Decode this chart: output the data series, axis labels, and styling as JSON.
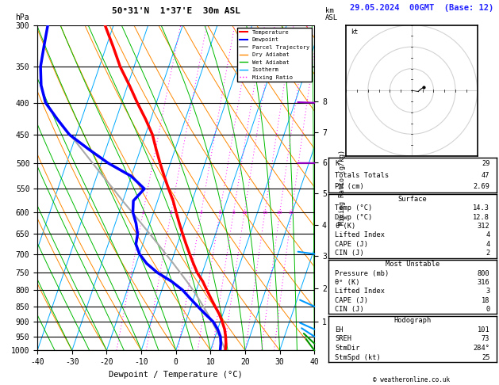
{
  "title_left": "50°31'N  1°37'E  30m ASL",
  "title_right": "29.05.2024  00GMT  (Base: 12)",
  "xlabel": "Dewpoint / Temperature (°C)",
  "pressure_ticks": [
    300,
    350,
    400,
    450,
    500,
    550,
    600,
    650,
    700,
    750,
    800,
    850,
    900,
    950,
    1000
  ],
  "mixing_ratio_lines": [
    1,
    2,
    4,
    6,
    8,
    10,
    15,
    20,
    25
  ],
  "km_ticks": [
    1,
    2,
    3,
    4,
    5,
    6,
    7,
    8
  ],
  "km_pressures": [
    898,
    795,
    705,
    628,
    560,
    499,
    446,
    398
  ],
  "temperature_profile": {
    "pressure": [
      1000,
      975,
      950,
      925,
      900,
      875,
      850,
      825,
      800,
      775,
      750,
      725,
      700,
      675,
      650,
      625,
      600,
      575,
      550,
      525,
      500,
      475,
      450,
      425,
      400,
      375,
      350,
      325,
      300
    ],
    "temp": [
      14.3,
      13.8,
      13.0,
      12.0,
      10.6,
      9.0,
      7.0,
      5.0,
      3.0,
      1.0,
      -1.5,
      -3.5,
      -5.5,
      -7.5,
      -9.5,
      -11.5,
      -13.5,
      -15.5,
      -18.0,
      -20.5,
      -23.0,
      -25.5,
      -28.0,
      -31.5,
      -35.5,
      -39.5,
      -44.0,
      -48.0,
      -52.5
    ]
  },
  "dewpoint_profile": {
    "pressure": [
      1000,
      975,
      950,
      925,
      900,
      875,
      850,
      825,
      800,
      775,
      750,
      725,
      700,
      675,
      650,
      625,
      600,
      575,
      550,
      525,
      500,
      475,
      450,
      425,
      400,
      375,
      350,
      325,
      300
    ],
    "dewp": [
      12.8,
      12.3,
      11.5,
      10.0,
      8.0,
      5.0,
      2.0,
      -1.0,
      -4.0,
      -8.0,
      -13.0,
      -17.0,
      -20.0,
      -22.0,
      -22.5,
      -24.0,
      -26.0,
      -27.0,
      -25.0,
      -30.0,
      -38.0,
      -45.0,
      -52.0,
      -57.0,
      -62.0,
      -65.0,
      -67.0,
      -68.0,
      -69.0
    ]
  },
  "parcel_trajectory": {
    "pressure": [
      1000,
      975,
      950,
      925,
      900,
      875,
      850,
      825,
      800,
      775,
      750,
      725,
      700,
      675,
      650,
      625,
      600,
      575,
      550,
      525,
      500,
      475,
      450
    ],
    "temp": [
      14.3,
      12.8,
      11.2,
      9.5,
      7.7,
      5.7,
      3.6,
      1.4,
      -1.0,
      -3.6,
      -6.4,
      -9.3,
      -12.4,
      -15.6,
      -19.0,
      -22.5,
      -26.2,
      -30.1,
      -34.0,
      -38.2,
      -42.5,
      -47.0,
      -51.8
    ]
  },
  "wind_barbs": {
    "pressure": [
      400,
      500,
      700,
      850,
      925,
      950,
      975,
      1000
    ],
    "u_kt": [
      -24.9,
      -20.0,
      -14.8,
      -8.7,
      -8.7,
      -7.7,
      -6.4,
      -5.0
    ],
    "v_kt": [
      1.1,
      0.0,
      2.6,
      5.0,
      5.0,
      6.4,
      7.7,
      8.7
    ],
    "colors": [
      "#9900cc",
      "#9900cc",
      "#0099ff",
      "#0099ff",
      "#0099ff",
      "#0099ff",
      "#009900",
      "#009900"
    ]
  },
  "colors": {
    "temperature": "#ff0000",
    "dewpoint": "#0000ff",
    "parcel": "#aaaaaa",
    "dry_adiabat": "#ff8800",
    "wet_adiabat": "#00bb00",
    "isotherm": "#00aaff",
    "mixing_ratio": "#ff00ff",
    "background": "#ffffff",
    "grid": "#000000"
  },
  "stats": {
    "K": 29,
    "Totals_Totals": 47,
    "PW_cm": 2.69,
    "surface_temp": 14.3,
    "surface_dewp": 12.8,
    "surface_theta_e": 312,
    "surface_lifted_index": 4,
    "surface_CAPE": 4,
    "surface_CIN": 2,
    "mu_pressure": 800,
    "mu_theta_e": 316,
    "mu_lifted_index": 3,
    "mu_CAPE": 18,
    "mu_CIN": 0,
    "EH": 101,
    "SREH": 73,
    "StmDir": 284,
    "StmSpd": 25
  }
}
